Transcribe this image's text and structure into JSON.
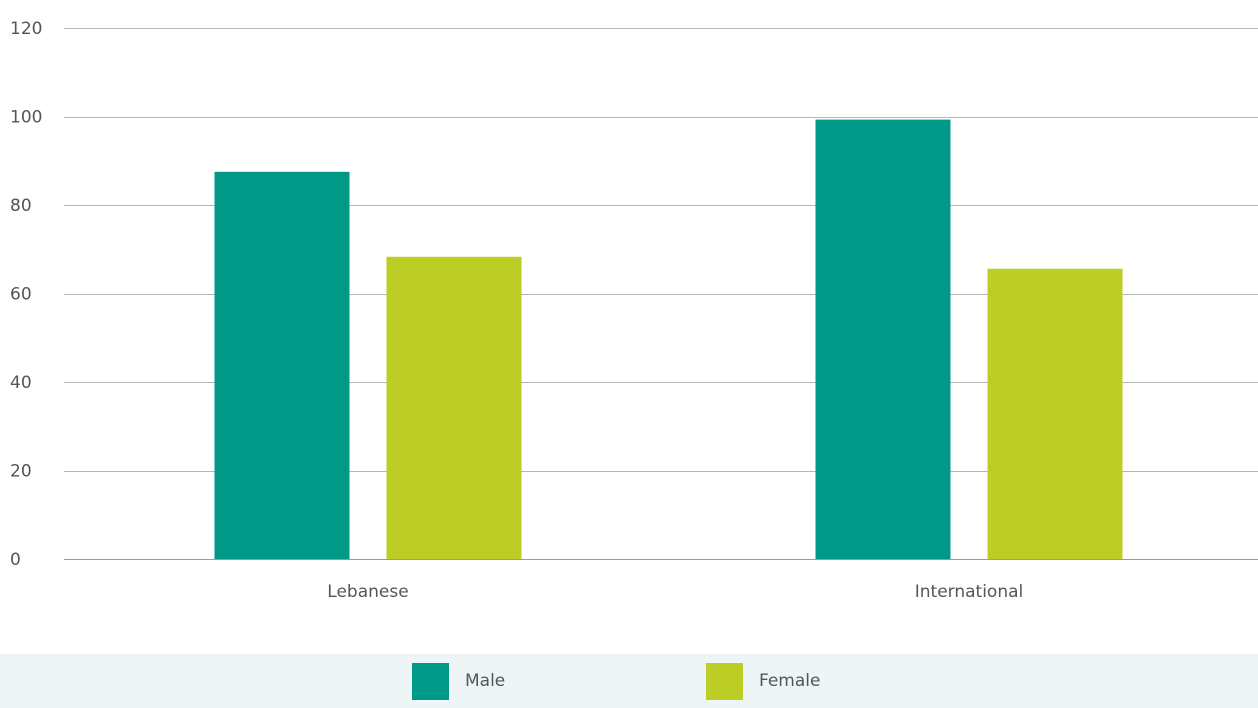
{
  "chart_data": {
    "type": "bar",
    "categories": [
      "Lebanese",
      "International"
    ],
    "series": [
      {
        "name": "Male",
        "values": [
          87.5,
          99.3
        ],
        "color": "#009988"
      },
      {
        "name": "Female",
        "values": [
          68.3,
          65.6
        ],
        "color": "#bccd26"
      }
    ],
    "title": "",
    "xlabel": "",
    "ylabel": "",
    "ylim": [
      0,
      120
    ],
    "yticks": [
      0,
      20,
      40,
      60,
      80,
      100,
      120
    ],
    "grid": true,
    "legend_position": "bottom"
  }
}
